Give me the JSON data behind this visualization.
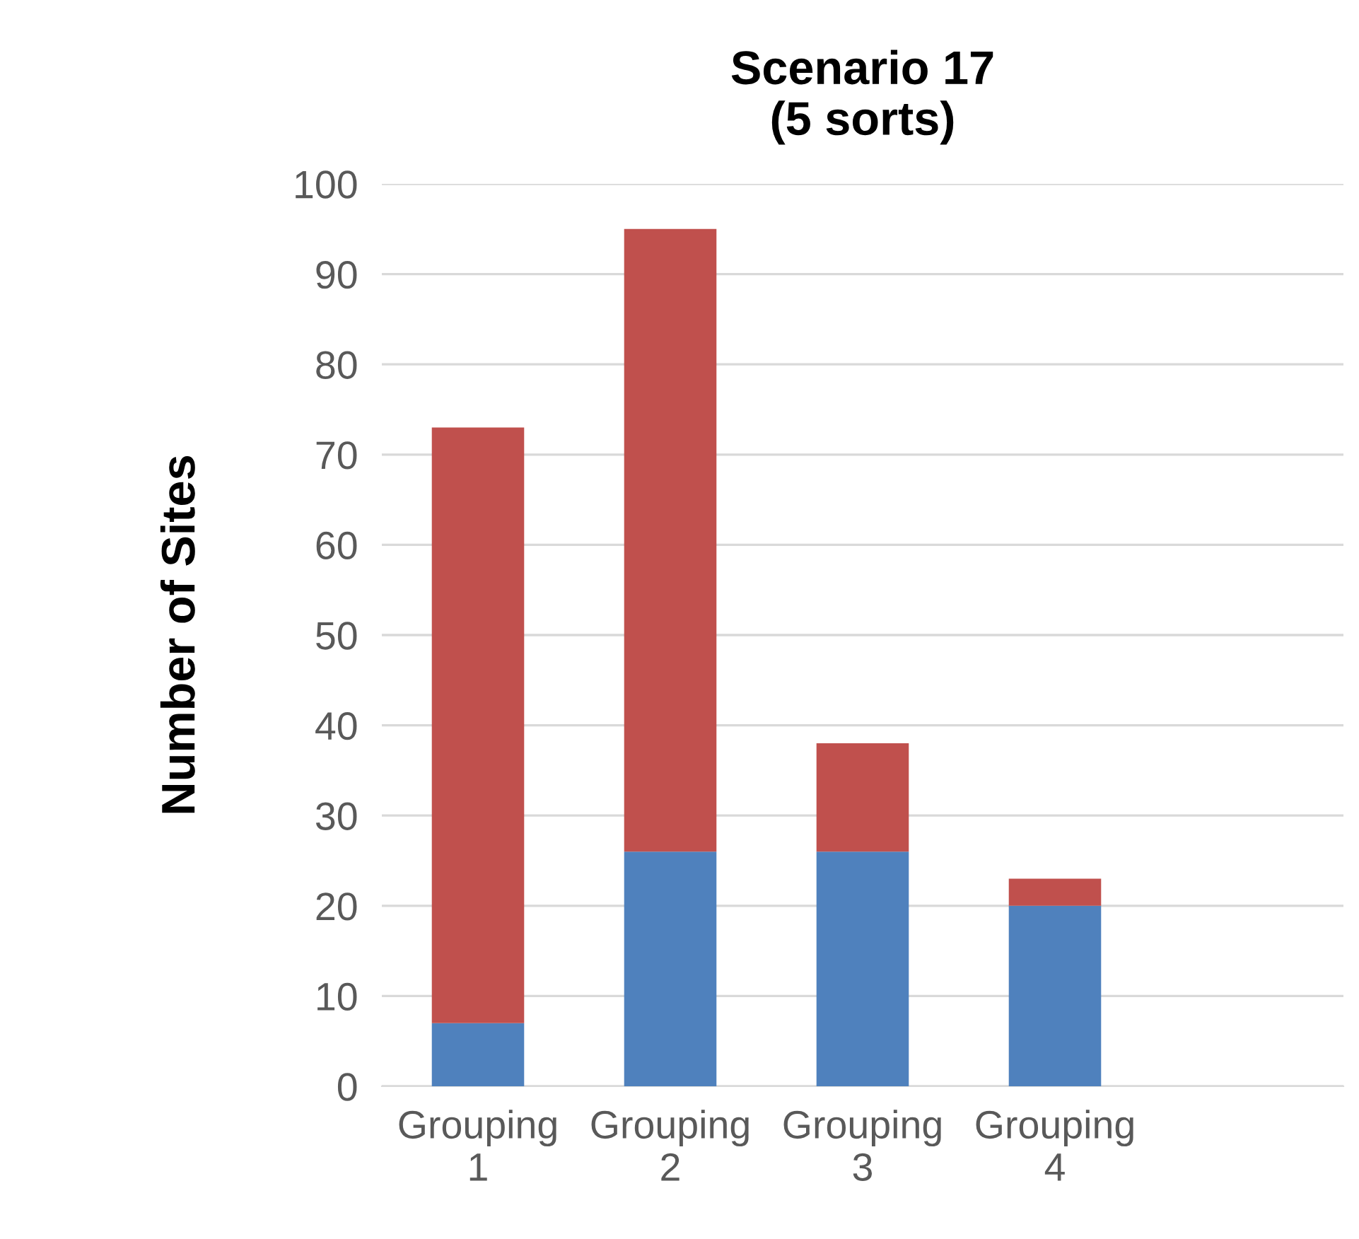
{
  "chart_data": {
    "type": "bar",
    "title": "Scenario 17\n(5 sorts)",
    "ylabel": "Number of Sites",
    "categories": [
      "Grouping\n1",
      "Grouping\n2",
      "Grouping\n3",
      "Grouping\n4",
      null
    ],
    "stacked": true,
    "series": [
      {
        "color": "#4f81bd",
        "values": [
          7,
          26,
          26,
          20,
          null
        ]
      },
      {
        "color": "#c0504d",
        "values": [
          66,
          69,
          12,
          3,
          null
        ]
      }
    ],
    "ylim": [
      0,
      100
    ],
    "yticks": [
      0,
      10,
      20,
      30,
      40,
      50,
      60,
      70,
      80,
      90,
      100
    ],
    "grid": "y",
    "legend": false
  }
}
